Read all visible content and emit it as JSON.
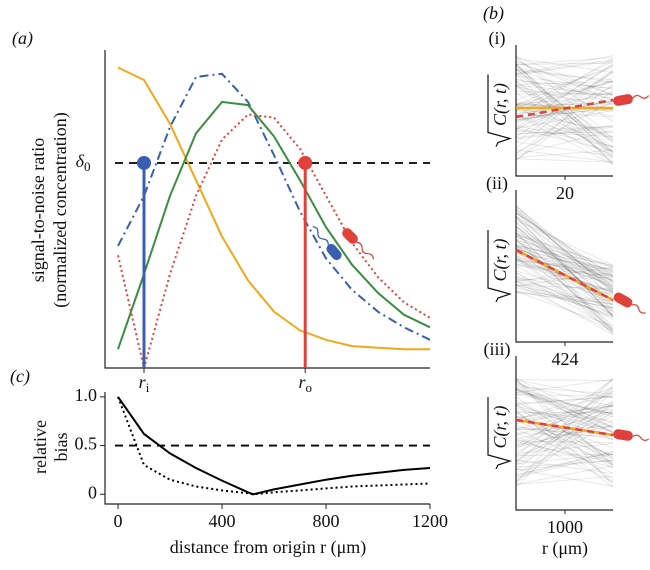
{
  "panel_labels": {
    "a": "(a)",
    "b": "(b)",
    "c": "(c)"
  },
  "chart_data": [
    {
      "type": "line",
      "ylabel": [
        "signal-to-noise ratio",
        "(normalized concentration)"
      ],
      "xlim": [
        -50,
        1200
      ],
      "ylim": [
        0,
        1
      ],
      "x": [
        0,
        100,
        200,
        300,
        400,
        500,
        600,
        700,
        800,
        900,
        1000,
        1100,
        1200
      ],
      "series": [
        {
          "color": "#f0a81c",
          "dash": "solid",
          "values": [
            0.96,
            0.92,
            0.78,
            0.6,
            0.42,
            0.28,
            0.18,
            0.12,
            0.09,
            0.07,
            0.065,
            0.06,
            0.06
          ]
        },
        {
          "color": "#3a5fb0",
          "dash": "dashdot",
          "values": [
            0.39,
            0.55,
            0.77,
            0.93,
            0.94,
            0.85,
            0.68,
            0.5,
            0.35,
            0.25,
            0.18,
            0.13,
            0.09
          ]
        },
        {
          "color": "#3a8d3e",
          "dash": "solid",
          "values": [
            0.06,
            0.3,
            0.55,
            0.75,
            0.85,
            0.84,
            0.74,
            0.6,
            0.45,
            0.33,
            0.24,
            0.17,
            0.13
          ]
        },
        {
          "color": "#e0413a",
          "dash": "dotted",
          "values": [
            0.36,
            0.0,
            0.3,
            0.55,
            0.73,
            0.81,
            0.8,
            0.7,
            0.55,
            0.4,
            0.29,
            0.21,
            0.16
          ]
        }
      ],
      "threshold": {
        "value": 0.655,
        "symbol": "δ",
        "subscript": "0"
      },
      "markers": [
        {
          "x": 100,
          "color": "#3a5fb0",
          "symbol": "r",
          "subscript": "i"
        },
        {
          "x": 720,
          "color": "#e0413a",
          "symbol": "r",
          "subscript": "o"
        }
      ]
    },
    {
      "type": "line",
      "ylabel": [
        "relative",
        "bias"
      ],
      "xlabel": "distance from origin r (μm)",
      "xlim": [
        -50,
        1200
      ],
      "ylim": [
        -0.1,
        1.05
      ],
      "xticks": [
        0,
        400,
        800,
        1200
      ],
      "yticks": [
        0,
        0.5,
        {
          "value": 1,
          "label": "1.0"
        }
      ],
      "reference": 0.5,
      "x": [
        0,
        100,
        200,
        300,
        400,
        500,
        520,
        600,
        700,
        800,
        900,
        1000,
        1100,
        1200
      ],
      "series": [
        {
          "color": "#000000",
          "dash": "solid",
          "values": [
            1.0,
            0.62,
            0.42,
            0.27,
            0.14,
            0.02,
            0,
            0.05,
            0.1,
            0.15,
            0.19,
            0.22,
            0.25,
            0.27
          ]
        },
        {
          "color": "#000000",
          "dash": "dotted",
          "values": [
            1.0,
            0.3,
            0.15,
            0.08,
            0.04,
            0.01,
            0,
            0.02,
            0.04,
            0.06,
            0.08,
            0.09,
            0.1,
            0.11
          ]
        }
      ]
    }
  ],
  "side_panels": [
    {
      "label": "(i)",
      "tick": "20"
    },
    {
      "label": "(ii)",
      "tick": "424"
    },
    {
      "label": "(iii)",
      "tick": "1000"
    }
  ],
  "side_ylabel": "C(r, t)",
  "side_xlabel": "r (μm)"
}
